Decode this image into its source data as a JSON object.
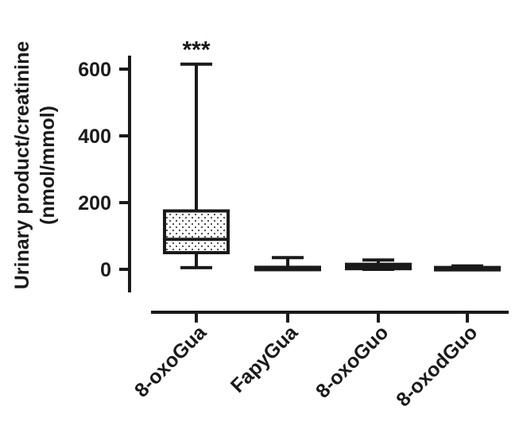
{
  "chart_data": {
    "type": "box",
    "ylabel_line1": "Urinary product/creatinine",
    "ylabel_line2": "(nmol/mmol)",
    "categories": [
      "8-oxoGua",
      "FapyGua",
      "8-oxoGuo",
      "8-oxodGuo"
    ],
    "yticks": [
      0,
      200,
      400,
      600
    ],
    "ylim": [
      -50,
      650
    ],
    "boxes": [
      {
        "category": "8-oxoGua",
        "min": 5,
        "q1": 50,
        "median": 90,
        "q3": 175,
        "max": 615,
        "annotation": "***"
      },
      {
        "category": "FapyGua",
        "min": 0,
        "q1": 0,
        "median": 2,
        "q3": 5,
        "max": 35
      },
      {
        "category": "8-oxoGuo",
        "min": 0,
        "q1": 2,
        "median": 8,
        "q3": 15,
        "max": 28
      },
      {
        "category": "8-oxodGuo",
        "min": 0,
        "q1": 0,
        "median": 2,
        "q3": 4,
        "max": 10
      }
    ],
    "grid": false,
    "legend": "none",
    "colors": {
      "ink": "#1a1a1a",
      "fill": "#ffffff",
      "stipple": "#1a1a1a"
    }
  }
}
